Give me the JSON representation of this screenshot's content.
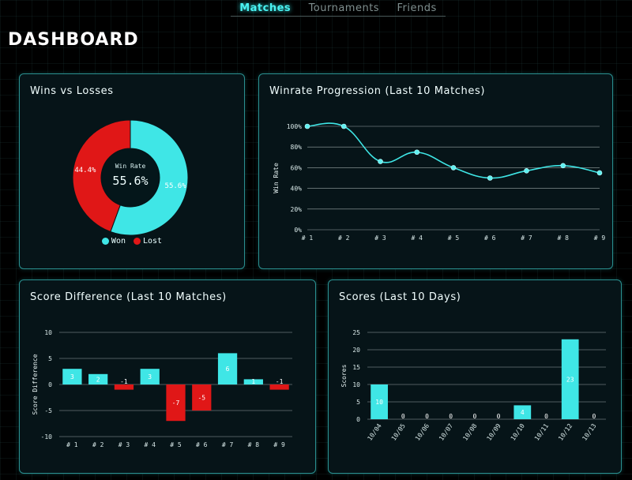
{
  "nav": {
    "tabs": [
      {
        "label": "Matches",
        "active": true
      },
      {
        "label": "Tournaments",
        "active": false
      },
      {
        "label": "Friends",
        "active": false
      }
    ]
  },
  "page_title": "DASHBOARD",
  "colors": {
    "accent": "#3fe6e6",
    "loss": "#e01717",
    "panel_border": "#2a8f8f"
  },
  "cards": {
    "pie": {
      "title": "Wins vs Losses",
      "center_label": "Win Rate",
      "center_value": "55.6%"
    },
    "line": {
      "title": "Winrate Progression (Last 10 Matches)"
    },
    "bar": {
      "title": "Score Difference (Last 10 Matches)"
    },
    "scores": {
      "title": "Scores (Last 10 Days)"
    }
  },
  "chart_data": [
    {
      "type": "pie",
      "title": "Wins vs Losses",
      "slices": [
        {
          "name": "Won",
          "value": 55.6,
          "label": "55.6%",
          "color": "#3fe6e6"
        },
        {
          "name": "Lost",
          "value": 44.4,
          "label": "44.4%",
          "color": "#e01717"
        }
      ],
      "legend": [
        "Won",
        "Lost"
      ],
      "legend_position": "bottom"
    },
    {
      "type": "line",
      "title": "Winrate Progression (Last 10 Matches)",
      "categories": [
        "# 1",
        "# 2",
        "# 3",
        "# 4",
        "# 5",
        "# 6",
        "# 7",
        "# 8",
        "# 9"
      ],
      "series": [
        {
          "values": [
            100,
            100,
            66,
            75,
            60,
            50,
            57,
            62,
            55
          ]
        }
      ],
      "ylabel": "Win Rate",
      "yticks": [
        "100%",
        "80%",
        "60%",
        "40%",
        "20%",
        "0%"
      ],
      "ylim": [
        0,
        100
      ],
      "grid": true
    },
    {
      "type": "bar",
      "title": "Score Difference (Last 10 Matches)",
      "categories": [
        "# 1",
        "# 2",
        "# 3",
        "# 4",
        "# 5",
        "# 6",
        "# 7",
        "# 8",
        "# 9"
      ],
      "values": [
        3,
        2,
        -1,
        3,
        -7,
        -5,
        6,
        1,
        -1
      ],
      "ylabel": "Score Difference",
      "yticks": [
        "10",
        "5",
        "0",
        "-5",
        "-10"
      ],
      "ylim": [
        -10,
        10
      ],
      "grid": true
    },
    {
      "type": "bar",
      "title": "Scores (Last 10 Days)",
      "categories": [
        "10/04",
        "10/05",
        "10/06",
        "10/07",
        "10/08",
        "10/09",
        "10/10",
        "10/11",
        "10/12",
        "10/13"
      ],
      "values": [
        10,
        0,
        0,
        0,
        0,
        0,
        4,
        0,
        23,
        0
      ],
      "ylabel": "Scores",
      "yticks": [
        "25",
        "20",
        "15",
        "10",
        "5",
        "0"
      ],
      "ylim": [
        0,
        25
      ],
      "grid": true
    }
  ]
}
